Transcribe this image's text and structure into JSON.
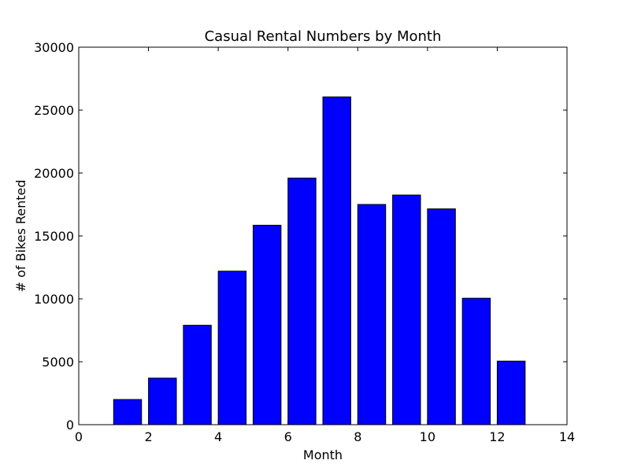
{
  "chart_data": {
    "type": "bar",
    "title": "Casual Rental Numbers by Month",
    "xlabel": "Month",
    "ylabel": "# of Bikes Rented",
    "xlim": [
      0,
      14
    ],
    "ylim": [
      0,
      30000
    ],
    "x_ticks": [
      0,
      2,
      4,
      6,
      8,
      10,
      12,
      14
    ],
    "y_ticks": [
      0,
      5000,
      10000,
      15000,
      20000,
      25000,
      30000
    ],
    "bar_width": 0.8,
    "x": [
      1,
      2,
      3,
      4,
      5,
      6,
      7,
      8,
      9,
      10,
      11,
      12
    ],
    "values": [
      2000,
      3700,
      7900,
      12200,
      15850,
      19600,
      26050,
      17500,
      18250,
      17150,
      10050,
      5050
    ],
    "bar_color": "#0000ff",
    "edge_color": "#000000",
    "grid": false
  }
}
